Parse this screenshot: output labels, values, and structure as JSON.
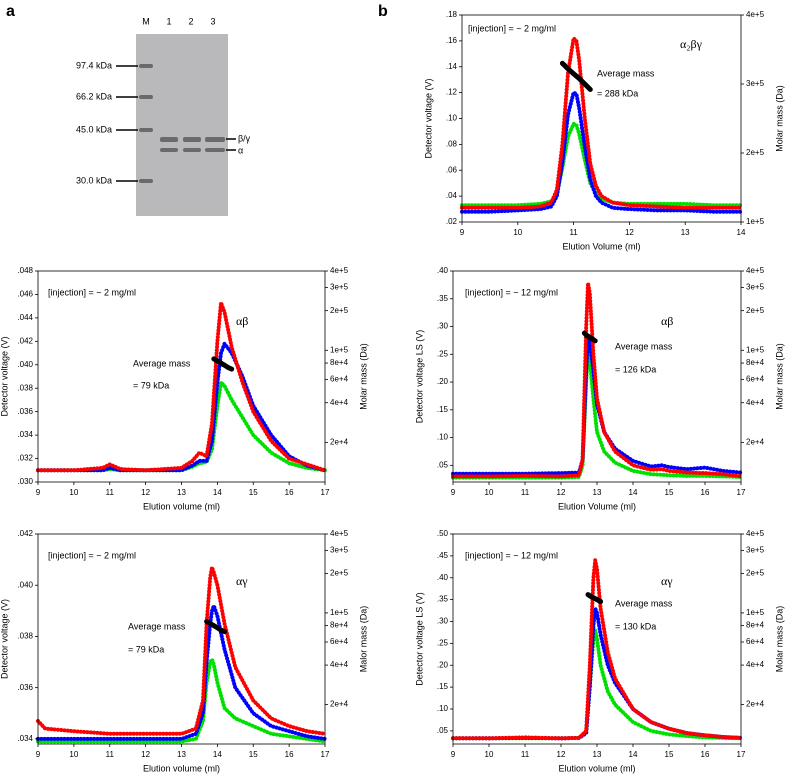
{
  "panel_labels": [
    "a",
    "b"
  ],
  "gel": {
    "lanes": [
      "M",
      "1",
      "2",
      "3"
    ],
    "markers": [
      "97.4 kDa",
      "66.2 kDa",
      "45.0 kDa",
      "30.0 kDa"
    ],
    "band_labels": [
      "β/γ",
      "α"
    ]
  },
  "chart_data": [
    {
      "type": "line",
      "annotation": "[injection] = ~ 2 mg/ml",
      "series_label": "α₂βγ",
      "mass_label": "Average mass",
      "mass_value": "= 288 kDa",
      "xlabel": "Elution Volume (ml)",
      "ylabel": "Detector voltage (V)",
      "y2label": "Molar mass (Da)",
      "xlim": [
        9,
        14
      ],
      "xticks": [
        9,
        10,
        11,
        12,
        13,
        14
      ],
      "ylim": [
        0.02,
        0.18
      ],
      "yticks": [
        {
          "value": 0.02,
          "label": ".02"
        },
        {
          "value": 0.04,
          "label": ".04"
        },
        {
          "value": 0.06,
          "label": ".06"
        },
        {
          "value": 0.08,
          "label": ".08"
        },
        {
          "value": 0.1,
          "label": ".10"
        },
        {
          "value": 0.12,
          "label": ".12"
        },
        {
          "value": 0.14,
          "label": ".14"
        },
        {
          "value": 0.16,
          "label": ".16"
        },
        {
          "value": 0.18,
          "label": ".18"
        }
      ],
      "y2lim": [
        100000,
        400000
      ],
      "y2log": false,
      "y2ticks": [
        {
          "value": 100000,
          "label": "1e+5"
        },
        {
          "value": 200000,
          "label": "2e+5"
        },
        {
          "value": 300000,
          "label": "3e+5"
        },
        {
          "value": 400000,
          "label": "4e+5"
        }
      ],
      "x": [
        9,
        9.5,
        10,
        10.4,
        10.6,
        10.7,
        10.8,
        10.9,
        11.0,
        11.05,
        11.1,
        11.2,
        11.3,
        11.4,
        11.5,
        11.7,
        12,
        12.5,
        13,
        13.5,
        14
      ],
      "series": [
        {
          "color": "#00e000",
          "values": [
            0.033,
            0.033,
            0.033,
            0.034,
            0.036,
            0.042,
            0.062,
            0.086,
            0.096,
            0.095,
            0.088,
            0.068,
            0.05,
            0.042,
            0.038,
            0.035,
            0.034,
            0.034,
            0.034,
            0.033,
            0.033
          ]
        },
        {
          "color": "#0000ff",
          "values": [
            0.028,
            0.028,
            0.029,
            0.03,
            0.032,
            0.04,
            0.066,
            0.103,
            0.12,
            0.119,
            0.108,
            0.078,
            0.053,
            0.04,
            0.035,
            0.031,
            0.03,
            0.029,
            0.029,
            0.028,
            0.028
          ]
        },
        {
          "color": "#ff0000",
          "values": [
            0.031,
            0.031,
            0.031,
            0.032,
            0.035,
            0.045,
            0.08,
            0.135,
            0.162,
            0.16,
            0.145,
            0.1,
            0.065,
            0.048,
            0.04,
            0.035,
            0.033,
            0.032,
            0.031,
            0.031,
            0.031
          ]
        },
        {
          "color": "#000000",
          "axis": "y2",
          "x": [
            10.8,
            10.9,
            11.0,
            11.1,
            11.2,
            11.3
          ],
          "values": [
            330000,
            322000,
            315000,
            308000,
            300000,
            292000
          ]
        }
      ]
    },
    {
      "type": "line",
      "annotation": "[injection] = ~ 2 mg/ml",
      "series_label": "αβ",
      "mass_label": "Average mass",
      "mass_value": "= 79 kDa",
      "xlabel": "Elution volume (ml)",
      "ylabel": "Detector voltage (V)",
      "y2label": "Molar mass (Da)",
      "xlim": [
        9,
        17
      ],
      "xticks": [
        9,
        10,
        11,
        12,
        13,
        14,
        15,
        16,
        17
      ],
      "ylim": [
        0.03,
        0.048
      ],
      "yticks": [
        {
          "value": 0.03,
          "label": ".030"
        },
        {
          "value": 0.032,
          "label": ".032"
        },
        {
          "value": 0.034,
          "label": ".034"
        },
        {
          "value": 0.036,
          "label": ".036"
        },
        {
          "value": 0.038,
          "label": ".038"
        },
        {
          "value": 0.04,
          "label": ".040"
        },
        {
          "value": 0.042,
          "label": ".042"
        },
        {
          "value": 0.044,
          "label": ".044"
        },
        {
          "value": 0.046,
          "label": ".046"
        },
        {
          "value": 0.048,
          "label": ".048"
        }
      ],
      "y2lim": [
        10000,
        400000
      ],
      "y2log": true,
      "y2ticks": [
        {
          "value": 20000,
          "label": "2e+4"
        },
        {
          "value": 40000,
          "label": "4e+4"
        },
        {
          "value": 60000,
          "label": "6e+4"
        },
        {
          "value": 80000,
          "label": "8e+4"
        },
        {
          "value": 100000,
          "label": "1e+5"
        },
        {
          "value": 200000,
          "label": "2e+5"
        },
        {
          "value": 300000,
          "label": "3e+5"
        },
        {
          "value": 400000,
          "label": "4e+5"
        }
      ],
      "x": [
        9,
        10,
        10.8,
        11,
        11.3,
        12,
        13,
        13.3,
        13.5,
        13.7,
        13.85,
        14,
        14.1,
        14.2,
        14.4,
        14.7,
        15,
        15.5,
        16,
        16.5,
        17
      ],
      "series": [
        {
          "color": "#00e000",
          "values": [
            0.031,
            0.031,
            0.031,
            0.0311,
            0.031,
            0.031,
            0.031,
            0.0313,
            0.0316,
            0.0317,
            0.0328,
            0.0365,
            0.0385,
            0.0382,
            0.037,
            0.0355,
            0.034,
            0.0325,
            0.0316,
            0.0312,
            0.031
          ]
        },
        {
          "color": "#0000ff",
          "values": [
            0.031,
            0.031,
            0.031,
            0.0312,
            0.031,
            0.031,
            0.031,
            0.0314,
            0.0318,
            0.0318,
            0.0335,
            0.0385,
            0.041,
            0.0418,
            0.041,
            0.039,
            0.0365,
            0.034,
            0.0322,
            0.0314,
            0.031
          ]
        },
        {
          "color": "#ff0000",
          "values": [
            0.031,
            0.031,
            0.0312,
            0.0315,
            0.0311,
            0.031,
            0.0312,
            0.0318,
            0.0325,
            0.0322,
            0.035,
            0.042,
            0.0453,
            0.0445,
            0.0415,
            0.0385,
            0.036,
            0.0335,
            0.032,
            0.0315,
            0.031
          ]
        },
        {
          "color": "#000000",
          "axis": "y2",
          "x": [
            13.9,
            14.0,
            14.1,
            14.2,
            14.3,
            14.4
          ],
          "values": [
            86000,
            83000,
            80000,
            77000,
            74000,
            72000
          ]
        }
      ]
    },
    {
      "type": "line",
      "annotation": "[injection] = ~ 12 mg/ml",
      "series_label": "αβ",
      "mass_label": "Average mass",
      "mass_value": "= 126 kDa",
      "xlabel": "Elution Volume (ml)",
      "ylabel": "Detector voltage LS (V)",
      "y2label": "Molar mass (Da)",
      "xlim": [
        9,
        17
      ],
      "xticks": [
        9,
        10,
        11,
        12,
        13,
        14,
        15,
        16,
        17
      ],
      "ylim": [
        0.02,
        0.4
      ],
      "yticks": [
        {
          "value": 0.05,
          "label": ".05"
        },
        {
          "value": 0.1,
          "label": ".10"
        },
        {
          "value": 0.15,
          "label": ".15"
        },
        {
          "value": 0.2,
          "label": ".20"
        },
        {
          "value": 0.25,
          "label": ".25"
        },
        {
          "value": 0.3,
          "label": ".30"
        },
        {
          "value": 0.35,
          "label": ".35"
        },
        {
          "value": 0.4,
          "label": ".40"
        }
      ],
      "y2lim": [
        10000,
        400000
      ],
      "y2log": true,
      "y2ticks": [
        {
          "value": 20000,
          "label": "2e+4"
        },
        {
          "value": 40000,
          "label": "4e+4"
        },
        {
          "value": 60000,
          "label": "6e+4"
        },
        {
          "value": 80000,
          "label": "8e+4"
        },
        {
          "value": 100000,
          "label": "1e+5"
        },
        {
          "value": 200000,
          "label": "2e+5"
        },
        {
          "value": 300000,
          "label": "3e+5"
        },
        {
          "value": 400000,
          "label": "4e+5"
        }
      ],
      "x": [
        9,
        10,
        11,
        12,
        12.5,
        12.6,
        12.7,
        12.75,
        12.8,
        12.9,
        13,
        13.2,
        13.5,
        14,
        14.5,
        14.8,
        15,
        15.5,
        16,
        16.5,
        17
      ],
      "series": [
        {
          "color": "#00e000",
          "values": [
            0.028,
            0.028,
            0.028,
            0.028,
            0.029,
            0.05,
            0.2,
            0.26,
            0.24,
            0.17,
            0.11,
            0.075,
            0.055,
            0.04,
            0.034,
            0.033,
            0.032,
            0.031,
            0.031,
            0.03,
            0.029
          ]
        },
        {
          "color": "#0000ff",
          "values": [
            0.035,
            0.035,
            0.035,
            0.036,
            0.037,
            0.06,
            0.22,
            0.28,
            0.275,
            0.22,
            0.16,
            0.11,
            0.08,
            0.058,
            0.048,
            0.05,
            0.047,
            0.043,
            0.046,
            0.04,
            0.037
          ]
        },
        {
          "color": "#ff0000",
          "values": [
            0.03,
            0.03,
            0.031,
            0.03,
            0.032,
            0.06,
            0.3,
            0.378,
            0.36,
            0.25,
            0.17,
            0.11,
            0.075,
            0.05,
            0.042,
            0.043,
            0.04,
            0.037,
            0.036,
            0.034,
            0.03
          ]
        },
        {
          "color": "#000000",
          "axis": "y2",
          "x": [
            12.65,
            12.71,
            12.77,
            12.83,
            12.89,
            12.95
          ],
          "values": [
            135000,
            130000,
            127000,
            124000,
            121000,
            118000
          ]
        }
      ]
    },
    {
      "type": "line",
      "annotation": "[injection] = ~ 2 mg/ml",
      "series_label": "αγ",
      "mass_label": "Average mass",
      "mass_value": "= 79 kDa",
      "xlabel": "Elution volume (ml)",
      "ylabel": "Detector voltage (V)",
      "y2label": "Malor mass (Da)",
      "xlim": [
        9,
        17
      ],
      "xticks": [
        9,
        10,
        11,
        12,
        13,
        14,
        15,
        16,
        17
      ],
      "ylim": [
        0.0338,
        0.042
      ],
      "yticks": [
        {
          "value": 0.034,
          "label": ".034"
        },
        {
          "value": 0.036,
          "label": ".036"
        },
        {
          "value": 0.038,
          "label": ".038"
        },
        {
          "value": 0.04,
          "label": ".040"
        },
        {
          "value": 0.042,
          "label": ".042"
        }
      ],
      "y2lim": [
        10000,
        400000
      ],
      "y2log": true,
      "y2ticks": [
        {
          "value": 20000,
          "label": "2e+4"
        },
        {
          "value": 40000,
          "label": "4e+4"
        },
        {
          "value": 60000,
          "label": "6e+4"
        },
        {
          "value": 80000,
          "label": "8e+4"
        },
        {
          "value": 100000,
          "label": "1e+5"
        },
        {
          "value": 200000,
          "label": "2e+5"
        },
        {
          "value": 300000,
          "label": "3e+5"
        },
        {
          "value": 400000,
          "label": "4e+5"
        }
      ],
      "x": [
        9,
        9.2,
        10,
        11,
        12,
        13,
        13.4,
        13.6,
        13.7,
        13.8,
        13.85,
        13.9,
        14,
        14.2,
        14.5,
        15,
        15.5,
        16,
        16.5,
        17
      ],
      "series": [
        {
          "color": "#00e000",
          "values": [
            0.0339,
            0.0339,
            0.0339,
            0.0339,
            0.0339,
            0.0339,
            0.034,
            0.0347,
            0.0362,
            0.037,
            0.0371,
            0.0369,
            0.0362,
            0.0352,
            0.0348,
            0.0345,
            0.0342,
            0.0341,
            0.034,
            0.0339
          ]
        },
        {
          "color": "#0000ff",
          "values": [
            0.034,
            0.034,
            0.034,
            0.034,
            0.034,
            0.034,
            0.0342,
            0.035,
            0.037,
            0.0385,
            0.039,
            0.0392,
            0.0388,
            0.0375,
            0.036,
            0.035,
            0.0345,
            0.0343,
            0.0341,
            0.034
          ]
        },
        {
          "color": "#ff0000",
          "values": [
            0.0347,
            0.0344,
            0.0343,
            0.0342,
            0.0342,
            0.0342,
            0.0344,
            0.0355,
            0.0385,
            0.0403,
            0.0407,
            0.0405,
            0.04,
            0.0385,
            0.0368,
            0.0355,
            0.0348,
            0.0345,
            0.0343,
            0.0342
          ]
        },
        {
          "color": "#000000",
          "axis": "y2",
          "x": [
            13.7,
            13.8,
            13.9,
            14.0,
            14.1,
            14.2
          ],
          "values": [
            86000,
            83000,
            80000,
            77000,
            74000,
            72000
          ]
        }
      ]
    },
    {
      "type": "line",
      "annotation": "[injection] = ~ 12 mg/ml",
      "series_label": "αγ",
      "mass_label": "Average mass",
      "mass_value": "= 130 kDa",
      "xlabel": "Elution volume (ml)",
      "ylabel": "Detector voltage LS (V)",
      "y2label": "Molar mass (Da)",
      "xlim": [
        9,
        17
      ],
      "xticks": [
        9,
        10,
        11,
        12,
        13,
        14,
        15,
        16,
        17
      ],
      "ylim": [
        0.02,
        0.5
      ],
      "yticks": [
        {
          "value": 0.05,
          "label": ".05"
        },
        {
          "value": 0.1,
          "label": ".10"
        },
        {
          "value": 0.15,
          "label": ".15"
        },
        {
          "value": 0.2,
          "label": ".20"
        },
        {
          "value": 0.25,
          "label": ".25"
        },
        {
          "value": 0.3,
          "label": ".30"
        },
        {
          "value": 0.35,
          "label": ".35"
        },
        {
          "value": 0.4,
          "label": ".40"
        },
        {
          "value": 0.45,
          "label": ".45"
        },
        {
          "value": 0.5,
          "label": ".50"
        }
      ],
      "y2lim": [
        10000,
        400000
      ],
      "y2log": true,
      "y2ticks": [
        {
          "value": 20000,
          "label": "2e+4"
        },
        {
          "value": 40000,
          "label": "4e+4"
        },
        {
          "value": 60000,
          "label": "6e+4"
        },
        {
          "value": 80000,
          "label": "8e+4"
        },
        {
          "value": 100000,
          "label": "1e+5"
        },
        {
          "value": 200000,
          "label": "2e+5"
        },
        {
          "value": 300000,
          "label": "3e+5"
        },
        {
          "value": 400000,
          "label": "4e+5"
        }
      ],
      "x": [
        9,
        10,
        11,
        12,
        12.5,
        12.7,
        12.8,
        12.9,
        12.95,
        13,
        13.1,
        13.3,
        13.5,
        14,
        14.5,
        15,
        15.5,
        16,
        16.5,
        17
      ],
      "series": [
        {
          "color": "#00e000",
          "values": [
            0.033,
            0.033,
            0.033,
            0.033,
            0.034,
            0.045,
            0.15,
            0.26,
            0.28,
            0.26,
            0.2,
            0.14,
            0.11,
            0.07,
            0.05,
            0.042,
            0.038,
            0.035,
            0.034,
            0.033
          ]
        },
        {
          "color": "#0000ff",
          "values": [
            0.033,
            0.033,
            0.034,
            0.033,
            0.034,
            0.045,
            0.15,
            0.29,
            0.33,
            0.32,
            0.27,
            0.2,
            0.16,
            0.1,
            0.07,
            0.055,
            0.045,
            0.04,
            0.036,
            0.034
          ]
        },
        {
          "color": "#ff0000",
          "values": [
            0.033,
            0.033,
            0.035,
            0.033,
            0.034,
            0.05,
            0.2,
            0.4,
            0.44,
            0.42,
            0.33,
            0.23,
            0.17,
            0.1,
            0.07,
            0.055,
            0.045,
            0.04,
            0.036,
            0.034
          ]
        },
        {
          "color": "#000000",
          "axis": "y2",
          "x": [
            12.75,
            12.82,
            12.89,
            12.96,
            13.03,
            13.1
          ],
          "values": [
            138000,
            134000,
            131000,
            128000,
            125000,
            122000
          ]
        }
      ]
    }
  ]
}
